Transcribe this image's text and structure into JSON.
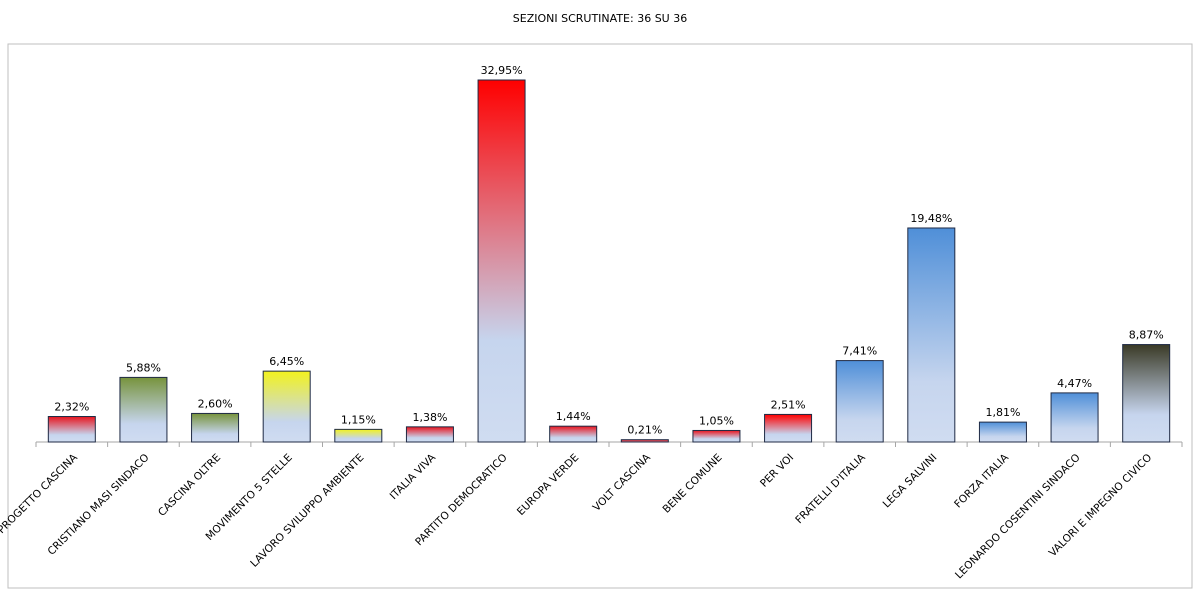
{
  "chart_data": {
    "type": "bar",
    "title": "SEZIONI SCRUTINATE: 36 SU 36",
    "xlabel": "",
    "ylabel": "",
    "ylim": [
      0,
      35
    ],
    "grid": false,
    "legend": "none",
    "categories": [
      "PROGETTO CASCINA",
      "CRISTIANO MASI SINDACO",
      "CASCINA OLTRE",
      "MOVIMENTO 5 STELLE",
      "LAVORO SVILUPPO AMBIENTE",
      "ITALIA VIVA",
      "PARTITO DEMOCRATICO",
      "EUROPA VERDE",
      "VOLT CASCINA",
      "BENE COMUNE",
      "PER VOI",
      "FRATELLI D'ITALIA",
      "LEGA SALVINI",
      "FORZA ITALIA",
      "LEONARDO COSENTINI SINDACO",
      "VALORI E IMPEGNO CIVICO"
    ],
    "values": [
      2.32,
      5.88,
      2.6,
      6.45,
      1.15,
      1.38,
      32.95,
      1.44,
      0.21,
      1.05,
      2.51,
      7.41,
      19.48,
      1.81,
      4.47,
      8.87
    ],
    "value_labels": [
      "2,32%",
      "5,88%",
      "2,60%",
      "6,45%",
      "1,15%",
      "1,38%",
      "32,95%",
      "1,44%",
      "0,21%",
      "1,05%",
      "2,51%",
      "7,41%",
      "19,48%",
      "1,81%",
      "4,47%",
      "8,87%"
    ],
    "bar_colors": [
      "#e8141e",
      "#77933c",
      "#77933c",
      "#f2f21e",
      "#f2f21e",
      "#e8141e",
      "#ff0000",
      "#e8141e",
      "#e8141e",
      "#e8141e",
      "#ff0000",
      "#4f8fd8",
      "#4f8fd8",
      "#4f8fd8",
      "#4f8fd8",
      "#3a3a26"
    ]
  }
}
